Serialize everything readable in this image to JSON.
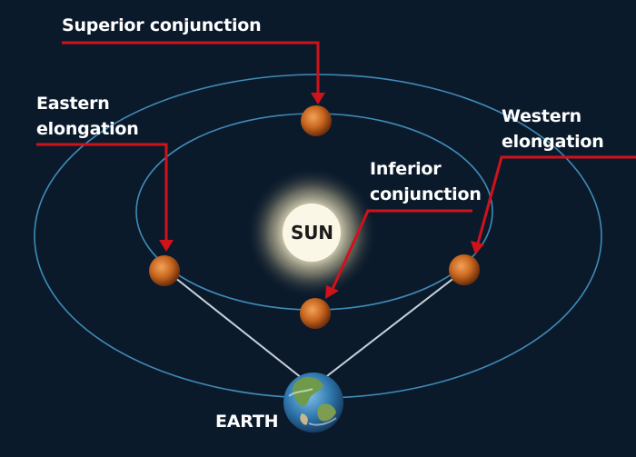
{
  "labels": {
    "superior_conjunction": "Superior conjunction",
    "eastern_elongation_line1": "Eastern",
    "eastern_elongation_line2": "elongation",
    "western_elongation_line1": "Western",
    "western_elongation_line2": "elongation",
    "inferior_conjunction_line1": "Inferior",
    "inferior_conjunction_line2": "conjunction",
    "sun": "SUN",
    "earth": "EARTH"
  },
  "colors": {
    "background": "#0b1a2b",
    "orbit": "#3f8bb8",
    "pointer": "#d0121b",
    "sight_line": "#c8d2dc",
    "planet": "#c86a22",
    "sun_glow": "#fff7d8"
  }
}
